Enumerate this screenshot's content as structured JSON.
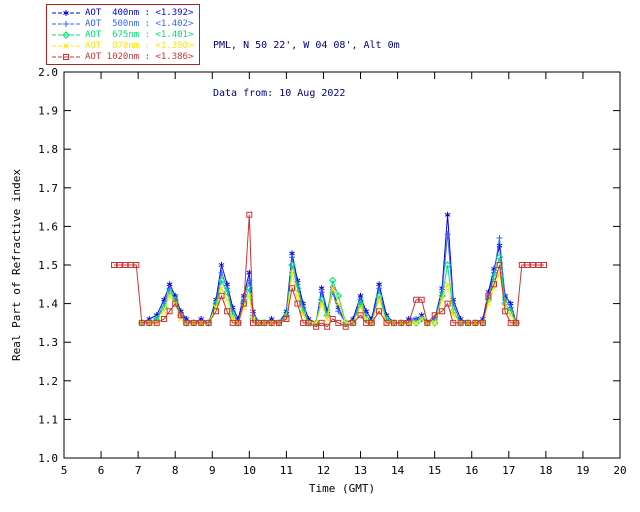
{
  "header": {
    "site_line": "PML, N 50 22', W 04 08', Alt 0m",
    "data_from_line": "Data from: 10 Aug 2022",
    "text_color": "#000080"
  },
  "legend": {
    "border_color": "#aa2222",
    "position": "top-left-outside"
  },
  "chart_data": {
    "type": "line",
    "title": "",
    "xlabel": "Time (GMT)",
    "ylabel": "Real Part of Refractive index",
    "xlim": [
      5,
      20
    ],
    "ylim": [
      1.0,
      2.0
    ],
    "x_ticks": [
      5,
      6,
      7,
      8,
      9,
      10,
      11,
      12,
      13,
      14,
      15,
      16,
      17,
      18,
      19,
      20
    ],
    "y_ticks": [
      1.0,
      1.1,
      1.2,
      1.3,
      1.4,
      1.5,
      1.6,
      1.7,
      1.8,
      1.9,
      2.0
    ],
    "y_tick_labels": [
      "1.0",
      "1.1",
      "1.2",
      "1.3",
      "1.4",
      "1.5",
      "1.6",
      "1.7",
      "1.8",
      "1.9",
      "2.0"
    ],
    "grid": false,
    "axis_color": "#000000",
    "x": [
      6.35,
      6.5,
      6.65,
      6.8,
      6.95,
      7.1,
      7.3,
      7.5,
      7.7,
      7.85,
      8.0,
      8.15,
      8.3,
      8.5,
      8.7,
      8.9,
      9.1,
      9.25,
      9.4,
      9.55,
      9.7,
      9.85,
      10.0,
      10.1,
      10.25,
      10.4,
      10.6,
      10.8,
      11.0,
      11.15,
      11.3,
      11.45,
      11.6,
      11.8,
      11.95,
      12.1,
      12.25,
      12.4,
      12.6,
      12.8,
      13.0,
      13.15,
      13.3,
      13.5,
      13.7,
      13.9,
      14.1,
      14.3,
      14.5,
      14.65,
      14.8,
      15.0,
      15.2,
      15.35,
      15.5,
      15.7,
      15.9,
      16.1,
      16.3,
      16.45,
      16.6,
      16.75,
      16.9,
      17.05,
      17.2,
      17.35,
      17.5,
      17.65,
      17.8,
      17.95
    ],
    "series": [
      {
        "id": "aot-400nm",
        "name": "AOT 400nm",
        "legend_value": "<1.392>",
        "legend_label": "AOT  400nm : <1.392>",
        "color": "#0000ee",
        "marker": "star",
        "values": [
          null,
          null,
          null,
          null,
          null,
          1.35,
          1.36,
          1.37,
          1.41,
          1.45,
          1.42,
          1.38,
          1.36,
          1.35,
          1.36,
          1.35,
          1.41,
          1.5,
          1.45,
          1.39,
          1.36,
          1.42,
          1.48,
          1.38,
          1.35,
          1.35,
          1.36,
          1.35,
          1.38,
          1.53,
          1.46,
          1.4,
          1.36,
          1.35,
          1.44,
          1.38,
          1.44,
          1.39,
          1.35,
          1.36,
          1.42,
          1.38,
          1.36,
          1.45,
          1.37,
          1.35,
          1.35,
          1.36,
          1.36,
          1.37,
          1.35,
          1.36,
          1.44,
          1.63,
          1.41,
          1.36,
          1.35,
          1.35,
          1.36,
          1.43,
          1.49,
          1.55,
          1.42,
          1.4,
          1.35,
          null,
          null,
          null,
          null,
          null
        ]
      },
      {
        "id": "aot-500nm",
        "name": "AOT 500nm",
        "legend_value": "<1.402>",
        "legend_label": "AOT  500nm : <1.402>",
        "color": "#3366ff",
        "marker": "plus",
        "values": [
          null,
          null,
          null,
          null,
          null,
          1.35,
          1.35,
          1.36,
          1.4,
          1.44,
          1.41,
          1.37,
          1.35,
          1.35,
          1.35,
          1.35,
          1.4,
          1.48,
          1.44,
          1.38,
          1.35,
          1.41,
          1.46,
          1.37,
          1.35,
          1.35,
          1.35,
          1.35,
          1.37,
          1.52,
          1.45,
          1.39,
          1.35,
          1.35,
          1.43,
          1.37,
          1.43,
          1.38,
          1.35,
          1.35,
          1.41,
          1.37,
          1.35,
          1.44,
          1.36,
          1.35,
          1.35,
          1.35,
          1.36,
          1.36,
          1.35,
          1.36,
          1.43,
          1.58,
          1.4,
          1.35,
          1.35,
          1.35,
          1.35,
          1.42,
          1.48,
          1.57,
          1.41,
          1.39,
          1.35,
          null,
          null,
          null,
          null,
          null
        ]
      },
      {
        "id": "aot-675nm",
        "name": "AOT 675nm",
        "legend_value": "<1.401>",
        "legend_label": "AOT  675nm : <1.401>",
        "color": "#00e070",
        "marker": "diamond",
        "values": [
          null,
          null,
          null,
          null,
          null,
          1.35,
          1.35,
          1.36,
          1.39,
          1.43,
          1.41,
          1.37,
          1.35,
          1.35,
          1.35,
          1.35,
          1.4,
          1.46,
          1.43,
          1.37,
          1.35,
          1.4,
          1.44,
          1.36,
          1.35,
          1.35,
          1.35,
          1.35,
          1.37,
          1.5,
          1.44,
          1.38,
          1.35,
          1.35,
          1.41,
          1.37,
          1.46,
          1.42,
          1.35,
          1.35,
          1.4,
          1.36,
          1.35,
          1.42,
          1.36,
          1.35,
          1.35,
          1.35,
          1.35,
          1.36,
          1.35,
          1.35,
          1.42,
          1.5,
          1.38,
          1.35,
          1.35,
          1.35,
          1.35,
          1.41,
          1.47,
          1.52,
          1.4,
          1.38,
          1.35,
          null,
          null,
          null,
          null,
          null
        ]
      },
      {
        "id": "aot-870nm",
        "name": "AOT 870nm",
        "legend_value": "<1.390>",
        "legend_label": "AOT  870nm : <1.390>",
        "color": "#ffe800",
        "marker": "cross",
        "values": [
          null,
          null,
          null,
          null,
          null,
          1.35,
          1.35,
          1.35,
          1.38,
          1.42,
          1.4,
          1.36,
          1.35,
          1.35,
          1.35,
          1.35,
          1.39,
          1.44,
          1.41,
          1.36,
          1.35,
          1.39,
          1.42,
          1.36,
          1.35,
          1.35,
          1.35,
          1.35,
          1.36,
          1.48,
          1.42,
          1.37,
          1.35,
          1.35,
          1.4,
          1.36,
          1.44,
          1.4,
          1.35,
          1.35,
          1.39,
          1.36,
          1.35,
          1.41,
          1.35,
          1.35,
          1.35,
          1.35,
          1.35,
          1.36,
          1.35,
          1.35,
          1.41,
          1.45,
          1.37,
          1.35,
          1.35,
          1.35,
          1.35,
          1.4,
          1.44,
          1.48,
          1.39,
          1.37,
          1.35,
          null,
          null,
          null,
          null,
          null
        ]
      },
      {
        "id": "aot-1020nm",
        "name": "AOT 1020nm",
        "legend_value": "<1.386>",
        "legend_label": "AOT 1020nm : <1.386>",
        "color": "#cc3333",
        "marker": "square",
        "values": [
          1.5,
          1.5,
          1.5,
          1.5,
          1.5,
          1.35,
          1.35,
          1.35,
          1.36,
          1.38,
          1.4,
          1.37,
          1.35,
          1.35,
          1.35,
          1.35,
          1.38,
          1.42,
          1.38,
          1.35,
          1.35,
          1.4,
          1.63,
          1.35,
          1.35,
          1.35,
          1.35,
          1.35,
          1.36,
          1.44,
          1.4,
          1.35,
          1.35,
          1.34,
          1.35,
          1.34,
          1.36,
          1.35,
          1.34,
          1.35,
          1.37,
          1.35,
          1.35,
          1.38,
          1.35,
          1.35,
          1.35,
          1.35,
          1.41,
          1.41,
          1.35,
          1.37,
          1.38,
          1.4,
          1.35,
          1.35,
          1.35,
          1.35,
          1.35,
          1.42,
          1.45,
          1.5,
          1.38,
          1.35,
          1.35,
          1.5,
          1.5,
          1.5,
          1.5,
          1.5
        ]
      }
    ]
  }
}
